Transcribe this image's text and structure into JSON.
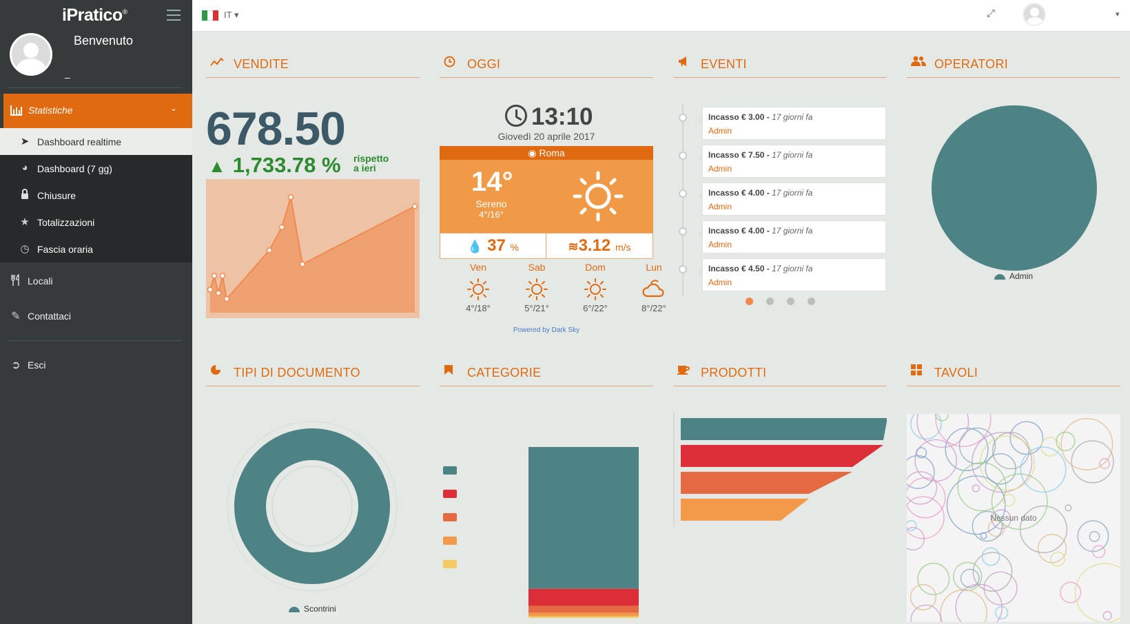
{
  "app": {
    "brand": "iPratico",
    "brand_mark": "®"
  },
  "sidebar": {
    "welcome": "Benvenuto",
    "username": "_",
    "section": {
      "label": "Statistiche",
      "icon": "bar-chart-icon"
    },
    "subitems": [
      {
        "label": "Dashboard realtime",
        "icon": "rocket-icon",
        "active": true
      },
      {
        "label": "Dashboard (7 gg)",
        "icon": "dashboard-icon"
      },
      {
        "label": "Chiusure",
        "icon": "lock-icon"
      },
      {
        "label": "Totalizzazioni",
        "icon": "star-icon"
      },
      {
        "label": "Fascia oraria",
        "icon": "clock-icon"
      }
    ],
    "items": [
      {
        "label": "Locali",
        "icon": "cutlery-icon"
      },
      {
        "label": "Contattaci",
        "icon": "edit-icon"
      },
      {
        "label": "Esci",
        "icon": "sign-out-icon"
      }
    ]
  },
  "topbar": {
    "language": "IT"
  },
  "vendite": {
    "title": "VENDITE",
    "total": "678.50",
    "change_pct": "1,733.78 %",
    "compare_label": [
      "rispetto",
      "a ieri"
    ],
    "chart_data": {
      "type": "area",
      "color": "#f08a50",
      "values": [
        0.08,
        0.2,
        0.05,
        0.2,
        0,
        0.42,
        0.62,
        0.88,
        0.3,
        0.8
      ]
    }
  },
  "oggi": {
    "title": "OGGI",
    "time": "13:10",
    "date": "Giovedì 20 aprile 2017",
    "city": "Roma",
    "temperature": "14°",
    "condition": "Sereno",
    "range": "4°/16°",
    "humidity": "37",
    "humidity_unit": "%",
    "wind": "3.12",
    "wind_unit": "m/s",
    "forecast": [
      {
        "day": "Ven",
        "range": "4°/18°",
        "icon": "sun-icon"
      },
      {
        "day": "Sab",
        "range": "5°/21°",
        "icon": "sun-icon"
      },
      {
        "day": "Dom",
        "range": "6°/22°",
        "icon": "sun-icon"
      },
      {
        "day": "Lun",
        "range": "8°/22°",
        "icon": "cloud-sun-icon"
      }
    ],
    "powered": "Powered by Dark Sky"
  },
  "eventi": {
    "title": "EVENTI",
    "items": [
      {
        "amount": "Incasso € 3.00 -",
        "when": "17 giorni fa",
        "user": "Admin"
      },
      {
        "amount": "Incasso € 7.50 -",
        "when": "17 giorni fa",
        "user": "Admin"
      },
      {
        "amount": "Incasso € 4.00 -",
        "when": "17 giorni fa",
        "user": "Admin"
      },
      {
        "amount": "Incasso € 4.00 -",
        "when": "17 giorni fa",
        "user": "Admin"
      },
      {
        "amount": "Incasso € 4.50 -",
        "when": "17 giorni fa",
        "user": "Admin"
      }
    ],
    "pages": 4,
    "current_page": 1
  },
  "operatori": {
    "title": "OPERATORI",
    "chart_data": {
      "type": "pie",
      "slices": [
        {
          "label": "Admin",
          "value": 100,
          "color": "#4e8385"
        }
      ]
    }
  },
  "tipi_documento": {
    "title": "TIPI DI DOCUMENTO",
    "chart_data": {
      "type": "pie",
      "slices": [
        {
          "label": "Scontrini",
          "value": 100,
          "color": "#4e8385"
        }
      ]
    }
  },
  "categorie": {
    "title": "CATEGORIE",
    "chart_data": {
      "type": "bar",
      "stacked": true,
      "series": [
        {
          "value": 0.83,
          "color": "#4e8385"
        },
        {
          "value": 0.1,
          "color": "#dc2e38"
        },
        {
          "value": 0.04,
          "color": "#e56a43"
        },
        {
          "value": 0.02,
          "color": "#f29a49"
        },
        {
          "value": 0.01,
          "color": "#f6ca62"
        }
      ]
    }
  },
  "prodotti": {
    "title": "PRODOTTI",
    "chart_data": {
      "type": "bar",
      "orientation": "funnel",
      "values": [
        1.0,
        0.98,
        0.83,
        0.62
      ],
      "colors": [
        "#4e8385",
        "#dc2e38",
        "#e56a43",
        "#f29a49"
      ]
    }
  },
  "tavoli": {
    "title": "TAVOLI",
    "empty": "Nessun dato"
  }
}
